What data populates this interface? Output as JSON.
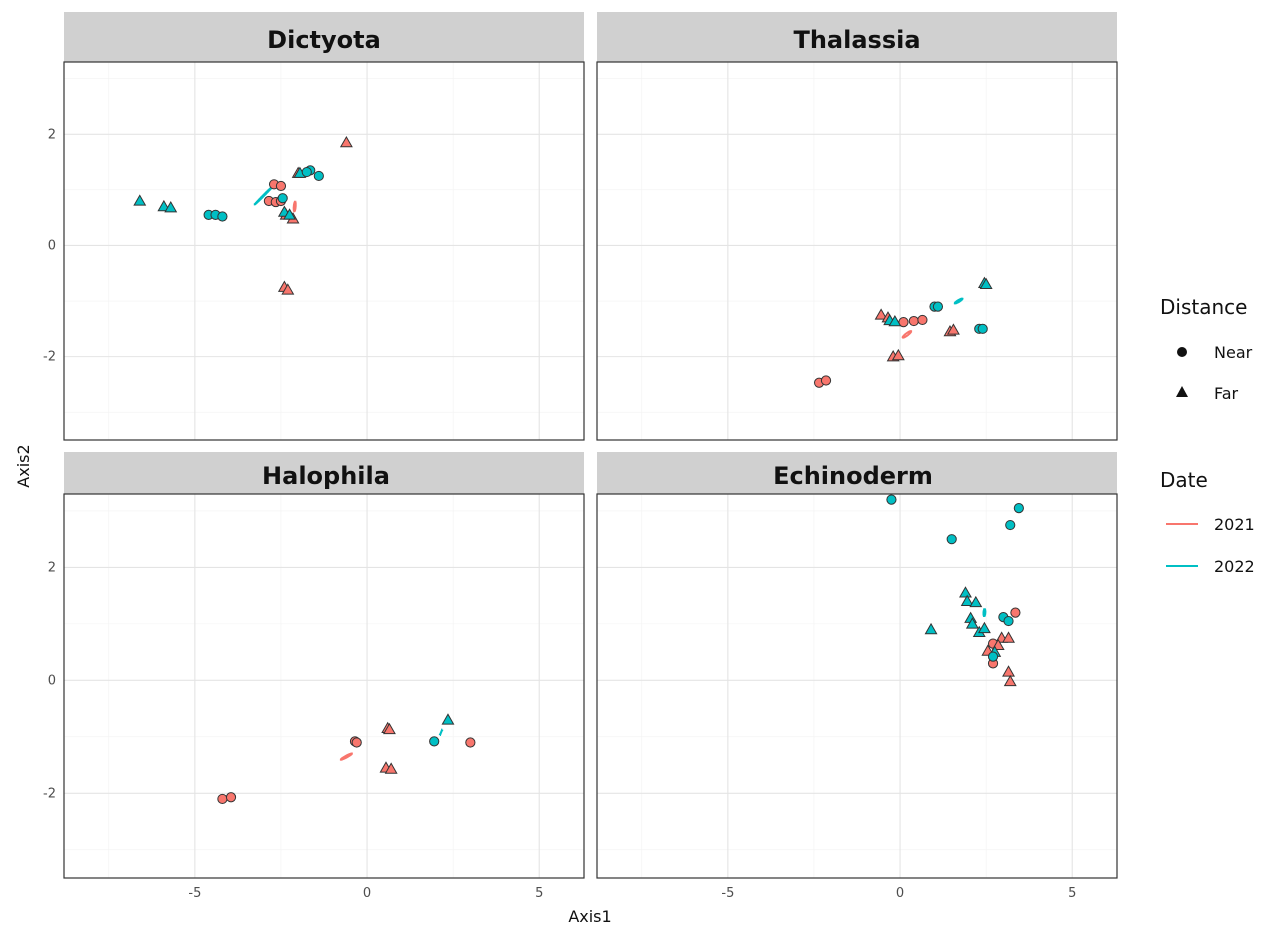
{
  "chart_data": {
    "type": "scatter",
    "xlabel": "Axis1",
    "ylabel": "Axis2",
    "xlim": [
      -8.8,
      6.3
    ],
    "ylim": [
      -3.5,
      3.3
    ],
    "x_ticks": [
      -5,
      0,
      5
    ],
    "y_ticks": [
      -2,
      0,
      2
    ],
    "grid": true,
    "colors": {
      "2021": "#f8766d",
      "2022": "#00bfc4"
    },
    "legends": [
      {
        "title": "Distance",
        "items": [
          {
            "label": "Near",
            "shape": "circle"
          },
          {
            "label": "Far",
            "shape": "triangle"
          }
        ]
      },
      {
        "title": "Date",
        "items": [
          {
            "label": "2021",
            "color": "#f8766d"
          },
          {
            "label": "2022",
            "color": "#00bfc4"
          }
        ]
      }
    ],
    "panels": [
      {
        "title": "Dictyota",
        "points": [
          {
            "x": -2.7,
            "y": 1.1,
            "distance": "Near",
            "date": "2021"
          },
          {
            "x": -2.5,
            "y": 1.07,
            "distance": "Near",
            "date": "2021"
          },
          {
            "x": -2.85,
            "y": 0.8,
            "distance": "Near",
            "date": "2021"
          },
          {
            "x": -2.65,
            "y": 0.78,
            "distance": "Near",
            "date": "2021"
          },
          {
            "x": -2.5,
            "y": 0.8,
            "distance": "Near",
            "date": "2021"
          },
          {
            "x": -2.35,
            "y": 0.55,
            "distance": "Far",
            "date": "2021"
          },
          {
            "x": -2.15,
            "y": 0.48,
            "distance": "Far",
            "date": "2021"
          },
          {
            "x": -2.4,
            "y": -0.75,
            "distance": "Far",
            "date": "2021"
          },
          {
            "x": -2.3,
            "y": -0.8,
            "distance": "Far",
            "date": "2021"
          },
          {
            "x": -2.0,
            "y": 1.3,
            "distance": "Far",
            "date": "2021"
          },
          {
            "x": -0.6,
            "y": 1.85,
            "distance": "Far",
            "date": "2021"
          },
          {
            "x": -6.6,
            "y": 0.8,
            "distance": "Far",
            "date": "2022"
          },
          {
            "x": -5.9,
            "y": 0.7,
            "distance": "Far",
            "date": "2022"
          },
          {
            "x": -5.7,
            "y": 0.68,
            "distance": "Far",
            "date": "2022"
          },
          {
            "x": -4.6,
            "y": 0.55,
            "distance": "Near",
            "date": "2022"
          },
          {
            "x": -4.4,
            "y": 0.55,
            "distance": "Near",
            "date": "2022"
          },
          {
            "x": -4.2,
            "y": 0.52,
            "distance": "Near",
            "date": "2022"
          },
          {
            "x": -2.45,
            "y": 0.85,
            "distance": "Near",
            "date": "2022"
          },
          {
            "x": -2.4,
            "y": 0.6,
            "distance": "Far",
            "date": "2022"
          },
          {
            "x": -2.25,
            "y": 0.55,
            "distance": "Far",
            "date": "2022"
          },
          {
            "x": -1.95,
            "y": 1.3,
            "distance": "Far",
            "date": "2022"
          },
          {
            "x": -1.65,
            "y": 1.35,
            "distance": "Near",
            "date": "2022"
          },
          {
            "x": -1.75,
            "y": 1.32,
            "distance": "Near",
            "date": "2022"
          },
          {
            "x": -1.4,
            "y": 1.25,
            "distance": "Near",
            "date": "2022"
          }
        ],
        "ellipses": [
          {
            "date": "2021",
            "cx": -2.1,
            "cy": 0.7,
            "rx": 3.0,
            "ry": 1.5,
            "angle": 82
          },
          {
            "date": "2022",
            "cx": -3.0,
            "cy": 0.9,
            "rx": 10.5,
            "ry": 0.6,
            "angle": 32
          }
        ]
      },
      {
        "title": "Thalassia",
        "points": [
          {
            "x": -0.55,
            "y": -1.25,
            "distance": "Far",
            "date": "2021"
          },
          {
            "x": -0.35,
            "y": -1.3,
            "distance": "Far",
            "date": "2021"
          },
          {
            "x": 0.1,
            "y": -1.38,
            "distance": "Near",
            "date": "2021"
          },
          {
            "x": 0.4,
            "y": -1.36,
            "distance": "Near",
            "date": "2021"
          },
          {
            "x": 0.65,
            "y": -1.34,
            "distance": "Near",
            "date": "2021"
          },
          {
            "x": 1.45,
            "y": -1.55,
            "distance": "Far",
            "date": "2021"
          },
          {
            "x": 1.55,
            "y": -1.52,
            "distance": "Far",
            "date": "2021"
          },
          {
            "x": -0.2,
            "y": -2.0,
            "distance": "Far",
            "date": "2021"
          },
          {
            "x": -0.05,
            "y": -1.98,
            "distance": "Far",
            "date": "2021"
          },
          {
            "x": -2.35,
            "y": -2.47,
            "distance": "Near",
            "date": "2021"
          },
          {
            "x": -2.15,
            "y": -2.43,
            "distance": "Near",
            "date": "2021"
          },
          {
            "x": -0.3,
            "y": -1.35,
            "distance": "Far",
            "date": "2022"
          },
          {
            "x": -0.15,
            "y": -1.37,
            "distance": "Far",
            "date": "2022"
          },
          {
            "x": 1.0,
            "y": -1.1,
            "distance": "Near",
            "date": "2022"
          },
          {
            "x": 1.1,
            "y": -1.1,
            "distance": "Near",
            "date": "2022"
          },
          {
            "x": 2.3,
            "y": -1.5,
            "distance": "Near",
            "date": "2022"
          },
          {
            "x": 2.4,
            "y": -1.5,
            "distance": "Near",
            "date": "2022"
          },
          {
            "x": 2.45,
            "y": -0.68,
            "distance": "Far",
            "date": "2022"
          },
          {
            "x": 2.5,
            "y": -0.7,
            "distance": "Far",
            "date": "2022"
          }
        ],
        "ellipses": [
          {
            "date": "2021",
            "cx": 0.2,
            "cy": -1.6,
            "rx": 4.6,
            "ry": 1.3,
            "angle": 24
          },
          {
            "date": "2022",
            "cx": 1.7,
            "cy": -1.0,
            "rx": 4.0,
            "ry": 1.0,
            "angle": 20
          }
        ]
      },
      {
        "title": "Halophila",
        "points": [
          {
            "x": -4.2,
            "y": -2.1,
            "distance": "Near",
            "date": "2021"
          },
          {
            "x": -3.95,
            "y": -2.07,
            "distance": "Near",
            "date": "2021"
          },
          {
            "x": -0.35,
            "y": -1.08,
            "distance": "Near",
            "date": "2021"
          },
          {
            "x": -0.3,
            "y": -1.1,
            "distance": "Near",
            "date": "2021"
          },
          {
            "x": 0.6,
            "y": -0.85,
            "distance": "Far",
            "date": "2021"
          },
          {
            "x": 0.65,
            "y": -0.87,
            "distance": "Far",
            "date": "2021"
          },
          {
            "x": 0.55,
            "y": -1.55,
            "distance": "Far",
            "date": "2021"
          },
          {
            "x": 0.7,
            "y": -1.57,
            "distance": "Far",
            "date": "2021"
          },
          {
            "x": 3.0,
            "y": -1.1,
            "distance": "Near",
            "date": "2021"
          },
          {
            "x": 1.95,
            "y": -1.08,
            "distance": "Near",
            "date": "2022"
          },
          {
            "x": 2.35,
            "y": -0.7,
            "distance": "Far",
            "date": "2022"
          }
        ],
        "ellipses": [
          {
            "date": "2021",
            "cx": -0.6,
            "cy": -1.35,
            "rx": 5.8,
            "ry": 0.95,
            "angle": 18
          },
          {
            "date": "2022",
            "cx": 2.15,
            "cy": -0.92,
            "rx": 2.05,
            "ry": 0.06,
            "angle": 55
          }
        ]
      },
      {
        "title": "Echinoderm",
        "points": [
          {
            "x": 3.35,
            "y": 1.2,
            "distance": "Near",
            "date": "2021"
          },
          {
            "x": 2.95,
            "y": 0.75,
            "distance": "Far",
            "date": "2021"
          },
          {
            "x": 3.15,
            "y": 0.75,
            "distance": "Far",
            "date": "2021"
          },
          {
            "x": 2.7,
            "y": 0.65,
            "distance": "Near",
            "date": "2021"
          },
          {
            "x": 2.85,
            "y": 0.62,
            "distance": "Far",
            "date": "2021"
          },
          {
            "x": 2.55,
            "y": 0.52,
            "distance": "Far",
            "date": "2021"
          },
          {
            "x": 2.7,
            "y": 0.3,
            "distance": "Near",
            "date": "2021"
          },
          {
            "x": 3.15,
            "y": 0.15,
            "distance": "Far",
            "date": "2021"
          },
          {
            "x": 3.2,
            "y": -0.02,
            "distance": "Far",
            "date": "2021"
          },
          {
            "x": -0.25,
            "y": 3.2,
            "distance": "Near",
            "date": "2022"
          },
          {
            "x": 3.45,
            "y": 3.05,
            "distance": "Near",
            "date": "2022"
          },
          {
            "x": 3.2,
            "y": 2.75,
            "distance": "Near",
            "date": "2022"
          },
          {
            "x": 1.5,
            "y": 2.5,
            "distance": "Near",
            "date": "2022"
          },
          {
            "x": 1.9,
            "y": 1.55,
            "distance": "Far",
            "date": "2022"
          },
          {
            "x": 1.95,
            "y": 1.4,
            "distance": "Far",
            "date": "2022"
          },
          {
            "x": 2.2,
            "y": 1.38,
            "distance": "Far",
            "date": "2022"
          },
          {
            "x": 2.05,
            "y": 1.1,
            "distance": "Far",
            "date": "2022"
          },
          {
            "x": 2.1,
            "y": 1.0,
            "distance": "Far",
            "date": "2022"
          },
          {
            "x": 2.3,
            "y": 0.85,
            "distance": "Far",
            "date": "2022"
          },
          {
            "x": 2.45,
            "y": 0.92,
            "distance": "Far",
            "date": "2022"
          },
          {
            "x": 3.0,
            "y": 1.12,
            "distance": "Near",
            "date": "2022"
          },
          {
            "x": 3.15,
            "y": 1.05,
            "distance": "Near",
            "date": "2022"
          },
          {
            "x": 0.9,
            "y": 0.9,
            "distance": "Far",
            "date": "2022"
          },
          {
            "x": 2.75,
            "y": 0.5,
            "distance": "Far",
            "date": "2022"
          },
          {
            "x": 2.7,
            "y": 0.42,
            "distance": "Near",
            "date": "2022"
          }
        ],
        "ellipses": [
          {
            "date": "2021",
            "cx": 2.75,
            "cy": 0.45,
            "rx": 1.35,
            "ry": 0.75,
            "angle": 85
          },
          {
            "date": "2022",
            "cx": 2.45,
            "cy": 1.2,
            "rx": 2.1,
            "ry": 1.5,
            "angle": 83
          }
        ]
      }
    ]
  }
}
